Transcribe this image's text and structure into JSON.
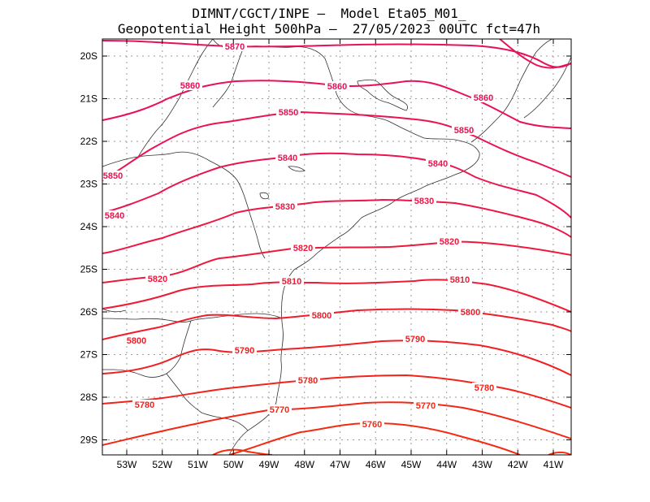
{
  "header": {
    "line1": "DIMNT/CGCT/INPE –  Model Eta05_M01_",
    "line2": "Geopotential Height 500hPa –  27/05/2023 00UTC fct=47h"
  },
  "axes": {
    "lat_labels": [
      "20S",
      "21S",
      "22S",
      "23S",
      "24S",
      "25S",
      "26S",
      "27S",
      "28S",
      "29S"
    ],
    "lon_labels": [
      "53W",
      "52W",
      "51W",
      "50W",
      "49W",
      "48W",
      "47W",
      "46W",
      "45W",
      "44W",
      "43W",
      "42W",
      "41W"
    ]
  },
  "colors": {
    "coast": "#303030",
    "grid": "#9a9a9a",
    "c5870": "#e8105a",
    "c5860": "#ea1056",
    "c5850": "#eb1252",
    "c5840": "#ec144c",
    "c5830": "#ee1646",
    "c5820": "#ef183c",
    "c5810": "#f01a34",
    "c5800": "#f01c2a",
    "c5790": "#f21e22",
    "c5780": "#f3221a",
    "c5770": "#f42614",
    "c5760": "#f52a10",
    "c5750": "#f62e0c"
  },
  "contours": [
    {
      "level": "5870",
      "labels": [
        {
          "text": "5870"
        }
      ]
    },
    {
      "level": "5860",
      "labels": [
        {
          "text": "5860"
        },
        {
          "text": "5860"
        },
        {
          "text": "5860"
        }
      ]
    },
    {
      "level": "5850",
      "labels": [
        {
          "text": "5850"
        },
        {
          "text": "5850"
        },
        {
          "text": "5850"
        }
      ]
    },
    {
      "level": "5840",
      "labels": [
        {
          "text": "5840"
        },
        {
          "text": "5840"
        },
        {
          "text": "5840"
        }
      ]
    },
    {
      "level": "5830",
      "labels": [
        {
          "text": "5830"
        },
        {
          "text": "5830"
        }
      ]
    },
    {
      "level": "5820",
      "labels": [
        {
          "text": "5820"
        },
        {
          "text": "5820"
        },
        {
          "text": "5820"
        }
      ]
    },
    {
      "level": "5810",
      "labels": [
        {
          "text": "5810"
        },
        {
          "text": "5810"
        }
      ]
    },
    {
      "level": "5800",
      "labels": [
        {
          "text": "5800"
        },
        {
          "text": "5800"
        },
        {
          "text": "5800"
        }
      ]
    },
    {
      "level": "5790",
      "labels": [
        {
          "text": "5790"
        },
        {
          "text": "5790"
        }
      ]
    },
    {
      "level": "5780",
      "labels": [
        {
          "text": "5780"
        },
        {
          "text": "5780"
        },
        {
          "text": "5780"
        }
      ]
    },
    {
      "level": "5770",
      "labels": [
        {
          "text": "5770"
        },
        {
          "text": "5770"
        }
      ]
    },
    {
      "level": "5760",
      "labels": [
        {
          "text": "5760"
        }
      ]
    }
  ]
}
